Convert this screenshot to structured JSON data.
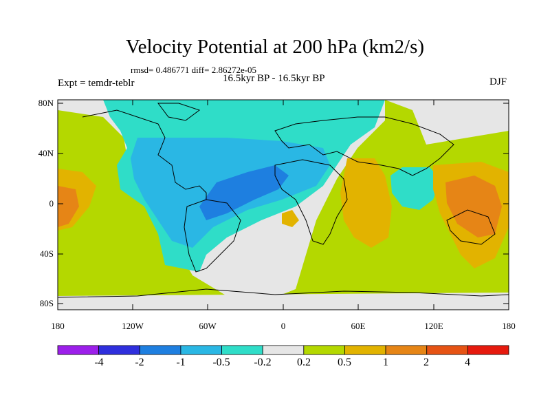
{
  "title": "Velocity Potential at 200 hPa (km2/s)",
  "stats": "rmsd= 0.486771  diff= 2.86272e-05",
  "experiment": "Expt = temdr-teblr",
  "period": "16.5kyr BP - 16.5kyr BP",
  "season": "DJF",
  "axes": {
    "y_ticks": [
      "80N",
      "40N",
      "0",
      "40S",
      "80S"
    ],
    "x_ticks": [
      "180",
      "120W",
      "60W",
      "0",
      "60E",
      "120E",
      "180"
    ]
  },
  "colorbar": {
    "labels": [
      "-4",
      "-2",
      "-1",
      "-0.5",
      "-0.2",
      "0.2",
      "0.5",
      "1",
      "2",
      "4"
    ],
    "colors": [
      "#9c1fea",
      "#2f2fdd",
      "#1e7fe0",
      "#2ab7e4",
      "#2fddc8",
      "#e6e6e6",
      "#b4d800",
      "#e2b300",
      "#e68516",
      "#e65314",
      "#e61a0e"
    ]
  },
  "colors": {
    "land_outline": "#000000",
    "gray_band": "#e6e6e6",
    "green": "#b4d800",
    "yellow": "#e2b300",
    "orange": "#e68516",
    "cyan": "#2fddc8",
    "light_blue": "#2ab7e4",
    "blue": "#1e7fe0"
  }
}
